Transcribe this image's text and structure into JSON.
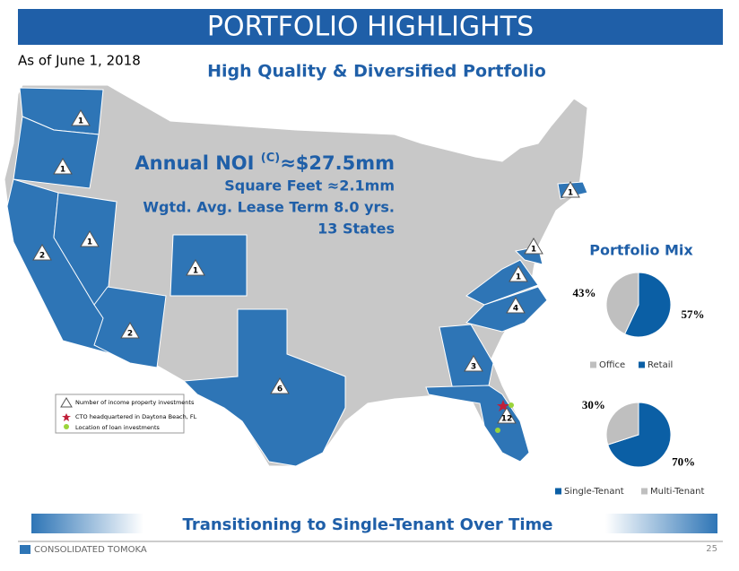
{
  "header": {
    "title": "PORTFOLIO HIGHLIGHTS",
    "date": "As of June 1, 2018",
    "subtitle": "High Quality & Diversified Portfolio"
  },
  "stats": {
    "noi_label": "Annual NOI",
    "noi_sup": "(C)",
    "noi_value": "≈$27.5mm",
    "square_feet": "Square Feet ≈2.1mm",
    "lease_term": "Wgtd. Avg. Lease Term 8.0 yrs.",
    "states": "13 States"
  },
  "map": {
    "states": [
      {
        "name": "WA",
        "count": "1"
      },
      {
        "name": "OR",
        "count": "1"
      },
      {
        "name": "NV",
        "count": "1"
      },
      {
        "name": "CA",
        "count": "2"
      },
      {
        "name": "CO",
        "count": "1"
      },
      {
        "name": "AZ",
        "count": "2"
      },
      {
        "name": "TX",
        "count": "6"
      },
      {
        "name": "GA",
        "count": "3"
      },
      {
        "name": "FL",
        "count": "12"
      },
      {
        "name": "NC",
        "count": "4"
      },
      {
        "name": "VA",
        "count": "1"
      },
      {
        "name": "MD",
        "count": "1"
      },
      {
        "name": "MA",
        "count": "1"
      }
    ],
    "legend": [
      "Number of income property investments",
      "CTO headquartered in Daytona Beach, FL",
      "Location of loan investments"
    ]
  },
  "mix_title": "Portfolio Mix",
  "chart_data": [
    {
      "type": "pie",
      "categories": [
        "Office",
        "Retail"
      ],
      "values": [
        43,
        57
      ],
      "value_labels": [
        "43%",
        "57%"
      ],
      "colors": [
        "#bfbfbf",
        "#0b5fa5"
      ]
    },
    {
      "type": "pie",
      "categories": [
        "Single-Tenant",
        "Multi-Tenant"
      ],
      "values": [
        70,
        30
      ],
      "value_labels": [
        "70%",
        "30%"
      ],
      "colors": [
        "#0b5fa5",
        "#bfbfbf"
      ]
    }
  ],
  "footer": {
    "banner": "Transitioning to Single-Tenant Over Time",
    "company": "CONSOLIDATED TOMOKA",
    "page": "25"
  }
}
